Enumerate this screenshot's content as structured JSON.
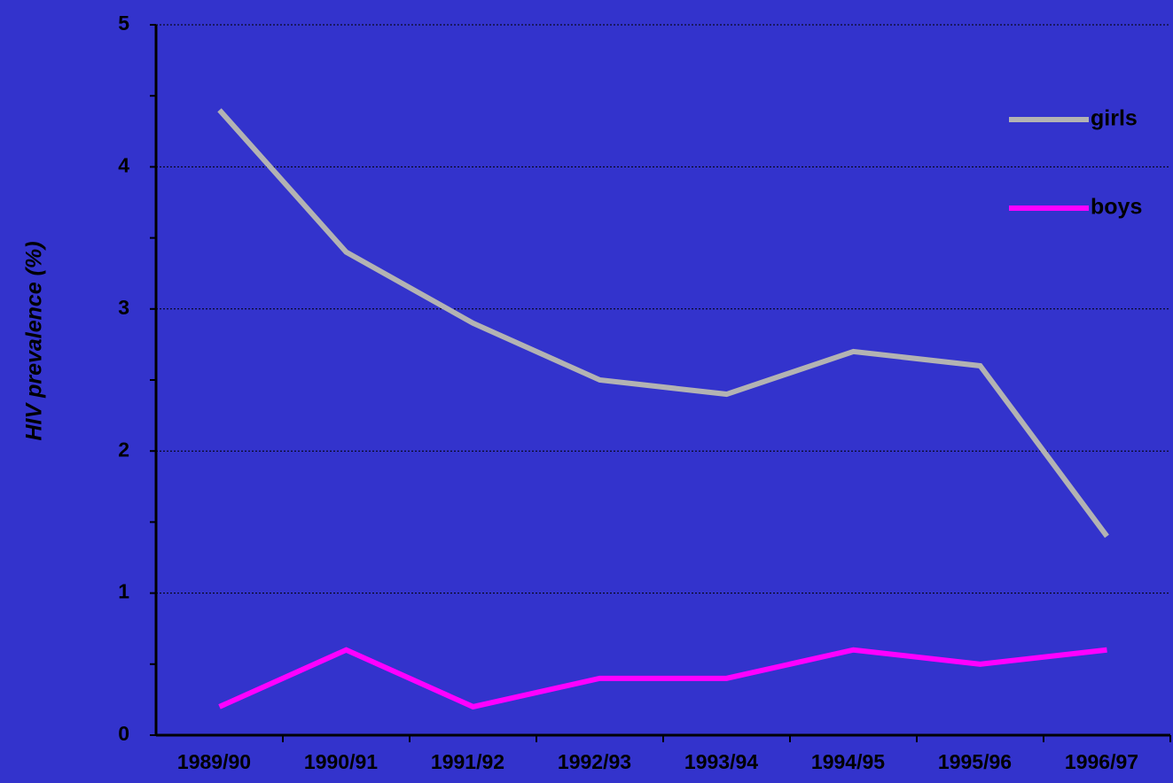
{
  "chart_data": {
    "type": "line",
    "y_label": "HIV prevalence (%)",
    "categories": [
      "1989/90",
      "1990/91",
      "1991/92",
      "1992/93",
      "1993/94",
      "1994/95",
      "1995/96",
      "1996/97"
    ],
    "series": [
      {
        "name": "girls",
        "color": "#B3B3B3",
        "values": [
          4.4,
          3.4,
          2.9,
          2.5,
          2.4,
          2.7,
          2.6,
          1.4
        ]
      },
      {
        "name": "boys",
        "color": "#FF00FF",
        "values": [
          0.2,
          0.6,
          0.2,
          0.4,
          0.4,
          0.6,
          0.5,
          0.6
        ]
      }
    ],
    "ylim": [
      0,
      5
    ],
    "yticks": [
      0,
      1,
      2,
      3,
      4,
      5
    ],
    "yminor_ticks": [
      0.5,
      1.5,
      2.5,
      3.5,
      4.5
    ],
    "grid": true,
    "legend": "upper right"
  }
}
